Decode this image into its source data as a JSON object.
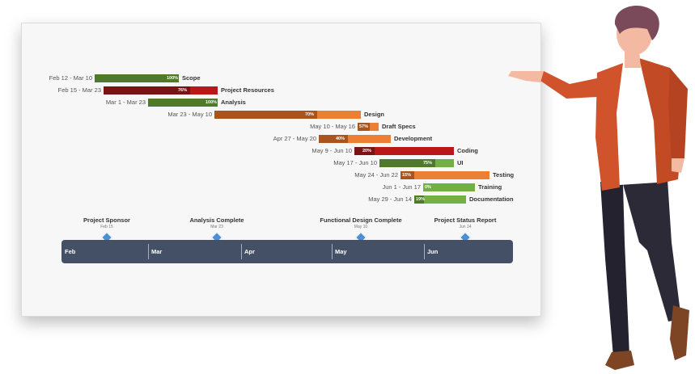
{
  "tasks": [
    {
      "dates": "Feb 12 - Mar 10",
      "pct": "100%",
      "name": "Scope",
      "fill": "#4e7a2a",
      "rest": "#4e7a2a"
    },
    {
      "dates": "Feb 15 - Mar 23",
      "pct": "76%",
      "name": "Project Resources",
      "fill": "#7a1414",
      "rest": "#b81818"
    },
    {
      "dates": "Mar 1  - Mar 23",
      "pct": "100%",
      "name": "Analysis",
      "fill": "#4e7a2a",
      "rest": "#4e7a2a"
    },
    {
      "dates": "Mar 23 - May 10",
      "pct": "70%",
      "name": "Design",
      "fill": "#a8541e",
      "rest": "#ec7f33"
    },
    {
      "dates": "May 10 - May 16",
      "pct": "57%",
      "name": "Draft Specs",
      "fill": "#a8541e",
      "rest": "#ec7f33"
    },
    {
      "dates": "Apr 27 - May 20",
      "pct": "40%",
      "name": "Development",
      "fill": "#a8541e",
      "rest": "#ec7f33"
    },
    {
      "dates": "May 9 - Jun 10",
      "pct": "20%",
      "name": "Coding",
      "fill": "#7a1414",
      "rest": "#b81818"
    },
    {
      "dates": "May 17 - Jun 10",
      "pct": "75%",
      "name": "UI",
      "fill": "#4e7a2a",
      "rest": "#72b044"
    },
    {
      "dates": "May 24 - Jun 22",
      "pct": "15%",
      "name": "Testing",
      "fill": "#a8541e",
      "rest": "#ec7f33"
    },
    {
      "dates": "Jun 1 - Jun 17",
      "pct": "0%",
      "name": "Training",
      "fill": "#4e7a2a",
      "rest": "#72b044"
    },
    {
      "dates": "May 29 - Jun 14",
      "pct": "19%",
      "name": "Documentation",
      "fill": "#4e7a2a",
      "rest": "#72b044"
    }
  ],
  "milestones": [
    {
      "title": "Project Sponsor",
      "date": "Feb 15"
    },
    {
      "title": "Analysis Complete",
      "date": "Mar 23"
    },
    {
      "title": "Functional Design Complete",
      "date": "May 10"
    },
    {
      "title": "Project Status Report",
      "date": "Jun 14"
    }
  ],
  "months": [
    "Feb",
    "Mar",
    "Apr",
    "May",
    "Jun"
  ],
  "colors": {
    "timeline": "#445066",
    "milestone": "#4e8fd4"
  }
}
